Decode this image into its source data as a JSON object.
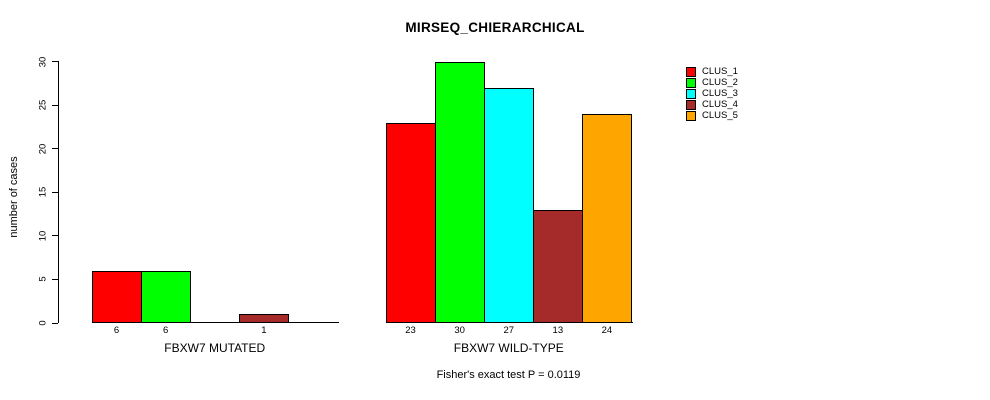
{
  "chart_data": {
    "type": "bar",
    "title": "MIRSEQ_CHIERARCHICAL",
    "ylabel": "number of cases",
    "xlabel": "",
    "ylim": [
      0,
      30
    ],
    "yticks": [
      0,
      5,
      10,
      15,
      20,
      25,
      30
    ],
    "categories": [
      "FBXW7 MUTATED",
      "FBXW7 WILD-TYPE"
    ],
    "series": [
      {
        "name": "CLUS_1",
        "color": "#FF0000",
        "values": [
          6,
          23
        ]
      },
      {
        "name": "CLUS_2",
        "color": "#00FF00",
        "values": [
          6,
          30
        ]
      },
      {
        "name": "CLUS_3",
        "color": "#00FFFF",
        "values": [
          0,
          27
        ]
      },
      {
        "name": "CLUS_4",
        "color": "#A52A2A",
        "values": [
          1,
          13
        ]
      },
      {
        "name": "CLUS_5",
        "color": "#FFA500",
        "values": [
          0,
          24
        ]
      }
    ],
    "legend": [
      "CLUS_1",
      "CLUS_2",
      "CLUS_3",
      "CLUS_4",
      "CLUS_5"
    ],
    "legend_position": "right",
    "bar_value_labels": true,
    "hide_zero_value_labels": true,
    "annotation": "Fisher's exact test P = 0.0119",
    "grid": false,
    "background": "#FFFFFF",
    "axis_color": "#000000"
  }
}
